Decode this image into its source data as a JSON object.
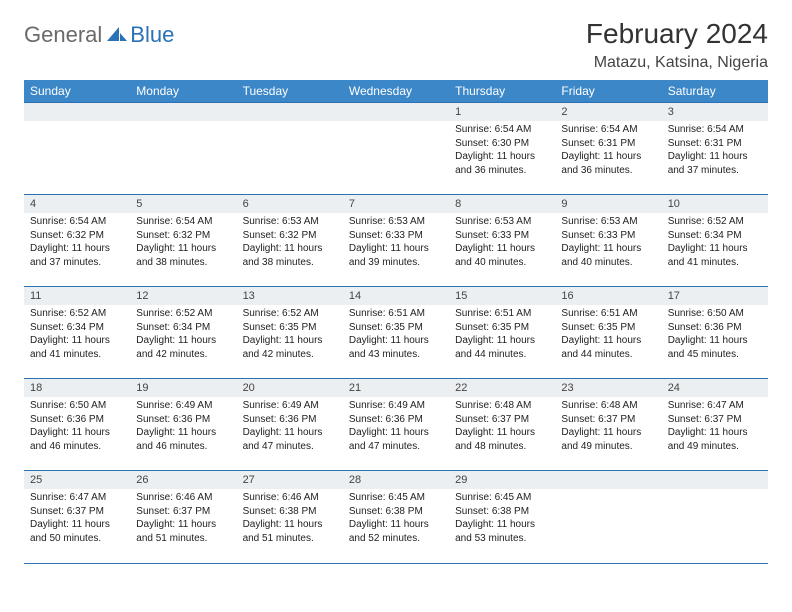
{
  "brand": {
    "text1": "General",
    "text2": "Blue"
  },
  "title": "February 2024",
  "subtitle": "Matazu, Katsina, Nigeria",
  "colors": {
    "header_bg": "#3b87c8",
    "header_fg": "#ffffff",
    "rule": "#2a72b5",
    "daynum_bg": "#eceff1",
    "brand_gray": "#6a6a6a",
    "brand_blue": "#2a72b5",
    "page_bg": "#ffffff"
  },
  "day_headers": [
    "Sunday",
    "Monday",
    "Tuesday",
    "Wednesday",
    "Thursday",
    "Friday",
    "Saturday"
  ],
  "weeks": [
    [
      null,
      null,
      null,
      null,
      {
        "n": "1",
        "sunrise": "6:54 AM",
        "sunset": "6:30 PM",
        "daylight": "11 hours and 36 minutes."
      },
      {
        "n": "2",
        "sunrise": "6:54 AM",
        "sunset": "6:31 PM",
        "daylight": "11 hours and 36 minutes."
      },
      {
        "n": "3",
        "sunrise": "6:54 AM",
        "sunset": "6:31 PM",
        "daylight": "11 hours and 37 minutes."
      }
    ],
    [
      {
        "n": "4",
        "sunrise": "6:54 AM",
        "sunset": "6:32 PM",
        "daylight": "11 hours and 37 minutes."
      },
      {
        "n": "5",
        "sunrise": "6:54 AM",
        "sunset": "6:32 PM",
        "daylight": "11 hours and 38 minutes."
      },
      {
        "n": "6",
        "sunrise": "6:53 AM",
        "sunset": "6:32 PM",
        "daylight": "11 hours and 38 minutes."
      },
      {
        "n": "7",
        "sunrise": "6:53 AM",
        "sunset": "6:33 PM",
        "daylight": "11 hours and 39 minutes."
      },
      {
        "n": "8",
        "sunrise": "6:53 AM",
        "sunset": "6:33 PM",
        "daylight": "11 hours and 40 minutes."
      },
      {
        "n": "9",
        "sunrise": "6:53 AM",
        "sunset": "6:33 PM",
        "daylight": "11 hours and 40 minutes."
      },
      {
        "n": "10",
        "sunrise": "6:52 AM",
        "sunset": "6:34 PM",
        "daylight": "11 hours and 41 minutes."
      }
    ],
    [
      {
        "n": "11",
        "sunrise": "6:52 AM",
        "sunset": "6:34 PM",
        "daylight": "11 hours and 41 minutes."
      },
      {
        "n": "12",
        "sunrise": "6:52 AM",
        "sunset": "6:34 PM",
        "daylight": "11 hours and 42 minutes."
      },
      {
        "n": "13",
        "sunrise": "6:52 AM",
        "sunset": "6:35 PM",
        "daylight": "11 hours and 42 minutes."
      },
      {
        "n": "14",
        "sunrise": "6:51 AM",
        "sunset": "6:35 PM",
        "daylight": "11 hours and 43 minutes."
      },
      {
        "n": "15",
        "sunrise": "6:51 AM",
        "sunset": "6:35 PM",
        "daylight": "11 hours and 44 minutes."
      },
      {
        "n": "16",
        "sunrise": "6:51 AM",
        "sunset": "6:35 PM",
        "daylight": "11 hours and 44 minutes."
      },
      {
        "n": "17",
        "sunrise": "6:50 AM",
        "sunset": "6:36 PM",
        "daylight": "11 hours and 45 minutes."
      }
    ],
    [
      {
        "n": "18",
        "sunrise": "6:50 AM",
        "sunset": "6:36 PM",
        "daylight": "11 hours and 46 minutes."
      },
      {
        "n": "19",
        "sunrise": "6:49 AM",
        "sunset": "6:36 PM",
        "daylight": "11 hours and 46 minutes."
      },
      {
        "n": "20",
        "sunrise": "6:49 AM",
        "sunset": "6:36 PM",
        "daylight": "11 hours and 47 minutes."
      },
      {
        "n": "21",
        "sunrise": "6:49 AM",
        "sunset": "6:36 PM",
        "daylight": "11 hours and 47 minutes."
      },
      {
        "n": "22",
        "sunrise": "6:48 AM",
        "sunset": "6:37 PM",
        "daylight": "11 hours and 48 minutes."
      },
      {
        "n": "23",
        "sunrise": "6:48 AM",
        "sunset": "6:37 PM",
        "daylight": "11 hours and 49 minutes."
      },
      {
        "n": "24",
        "sunrise": "6:47 AM",
        "sunset": "6:37 PM",
        "daylight": "11 hours and 49 minutes."
      }
    ],
    [
      {
        "n": "25",
        "sunrise": "6:47 AM",
        "sunset": "6:37 PM",
        "daylight": "11 hours and 50 minutes."
      },
      {
        "n": "26",
        "sunrise": "6:46 AM",
        "sunset": "6:37 PM",
        "daylight": "11 hours and 51 minutes."
      },
      {
        "n": "27",
        "sunrise": "6:46 AM",
        "sunset": "6:38 PM",
        "daylight": "11 hours and 51 minutes."
      },
      {
        "n": "28",
        "sunrise": "6:45 AM",
        "sunset": "6:38 PM",
        "daylight": "11 hours and 52 minutes."
      },
      {
        "n": "29",
        "sunrise": "6:45 AM",
        "sunset": "6:38 PM",
        "daylight": "11 hours and 53 minutes."
      },
      null,
      null
    ]
  ],
  "labels": {
    "sunrise": "Sunrise:",
    "sunset": "Sunset:",
    "daylight": "Daylight:"
  }
}
